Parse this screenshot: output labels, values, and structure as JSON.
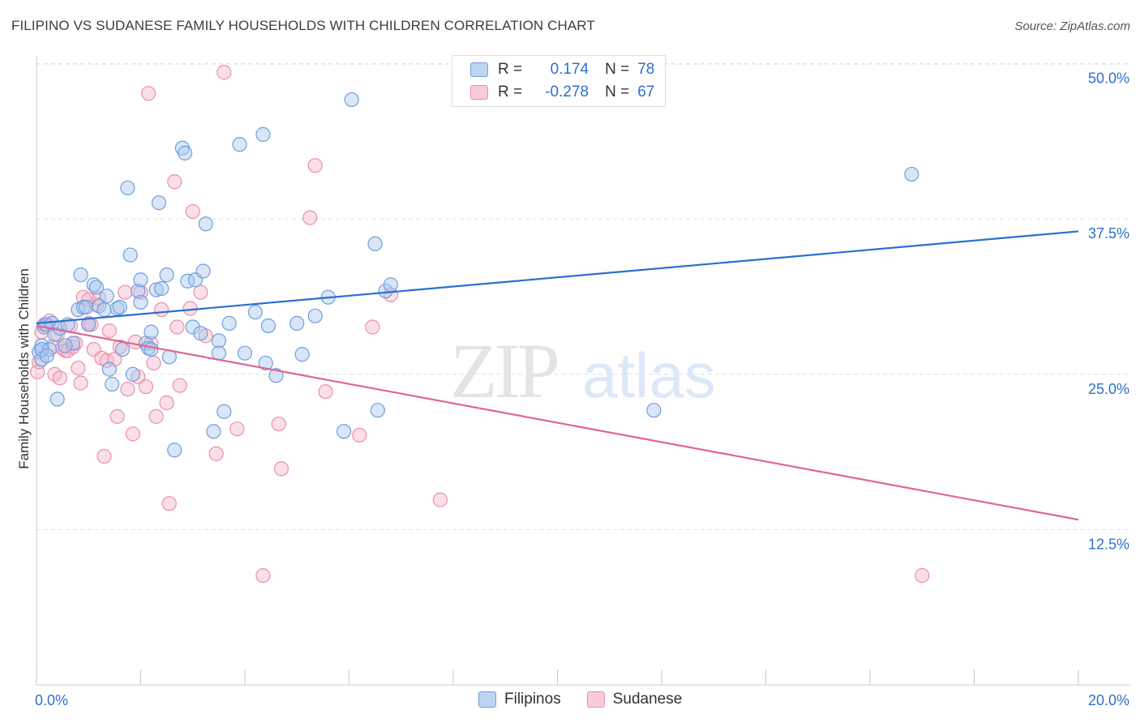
{
  "title": "FILIPINO VS SUDANESE FAMILY HOUSEHOLDS WITH CHILDREN CORRELATION CHART",
  "source": "Source: ZipAtlas.com",
  "watermark": {
    "zip": "ZIP",
    "atlas": "atlas"
  },
  "legend": {
    "r_label": "R =",
    "n_label": "N =",
    "rows": [
      {
        "r": "0.174",
        "n": "78"
      },
      {
        "r": "-0.278",
        "n": "67"
      }
    ]
  },
  "bottom_legend": [
    "Filipinos",
    "Sudanese"
  ],
  "colors": {
    "filipinos_fill": "#a9c8f0",
    "filipinos_stroke": "#6f9fdc",
    "filipinos_line": "#2a6fcf",
    "sudanese_fill": "#f6b8cb",
    "sudanese_stroke": "#eb8eaa",
    "sudanese_line": "#e0668f",
    "tick_label": "#2e6fd1"
  },
  "chart_data": {
    "type": "scatter",
    "title": "FILIPINO VS SUDANESE FAMILY HOUSEHOLDS WITH CHILDREN CORRELATION CHART",
    "xlabel": "",
    "ylabel": "Family Households with Children",
    "xlim": [
      0,
      20
    ],
    "ylim": [
      0,
      52
    ],
    "x_tick_labels": [
      "0.0%",
      "20.0%"
    ],
    "y_ticks": [
      12.5,
      25.0,
      37.5,
      50.0
    ],
    "y_tick_labels": [
      "12.5%",
      "25.0%",
      "37.5%",
      "50.0%"
    ],
    "grid": true,
    "legend_position": "top-center",
    "series": [
      {
        "name": "Filipinos",
        "r": 0.174,
        "n": 78,
        "trend": {
          "x": [
            0,
            20
          ],
          "y": [
            29.1,
            36.5
          ]
        },
        "points": [
          [
            0.05,
            26.8
          ],
          [
            0.1,
            27.3
          ],
          [
            0.1,
            26.2
          ],
          [
            0.15,
            28.8
          ],
          [
            0.18,
            29.0
          ],
          [
            0.25,
            27.0
          ],
          [
            0.3,
            29.1
          ],
          [
            0.35,
            28.2
          ],
          [
            0.4,
            23.0
          ],
          [
            0.45,
            28.7
          ],
          [
            0.6,
            29.0
          ],
          [
            0.7,
            27.5
          ],
          [
            0.8,
            30.2
          ],
          [
            0.85,
            33.0
          ],
          [
            0.9,
            30.4
          ],
          [
            0.95,
            30.4
          ],
          [
            1.0,
            29.0
          ],
          [
            1.1,
            32.2
          ],
          [
            1.15,
            32.0
          ],
          [
            1.2,
            30.5
          ],
          [
            1.3,
            30.2
          ],
          [
            1.35,
            31.3
          ],
          [
            1.4,
            25.4
          ],
          [
            1.45,
            24.2
          ],
          [
            1.55,
            30.3
          ],
          [
            1.6,
            30.4
          ],
          [
            1.65,
            27.0
          ],
          [
            1.75,
            40.0
          ],
          [
            1.8,
            34.6
          ],
          [
            1.85,
            25.0
          ],
          [
            1.95,
            31.7
          ],
          [
            2.0,
            30.8
          ],
          [
            2.0,
            32.6
          ],
          [
            2.1,
            27.5
          ],
          [
            2.15,
            27.1
          ],
          [
            2.2,
            28.4
          ],
          [
            2.3,
            31.8
          ],
          [
            2.35,
            38.8
          ],
          [
            2.4,
            31.9
          ],
          [
            2.5,
            33.0
          ],
          [
            2.55,
            26.4
          ],
          [
            2.65,
            18.9
          ],
          [
            2.8,
            43.2
          ],
          [
            2.85,
            42.8
          ],
          [
            2.9,
            32.5
          ],
          [
            3.0,
            28.8
          ],
          [
            3.05,
            32.6
          ],
          [
            3.15,
            28.3
          ],
          [
            3.2,
            33.3
          ],
          [
            3.25,
            37.1
          ],
          [
            3.4,
            20.4
          ],
          [
            3.5,
            27.7
          ],
          [
            3.5,
            26.7
          ],
          [
            3.6,
            22.0
          ],
          [
            3.7,
            29.1
          ],
          [
            3.9,
            43.5
          ],
          [
            4.0,
            26.7
          ],
          [
            4.2,
            30.0
          ],
          [
            4.35,
            44.3
          ],
          [
            4.4,
            25.9
          ],
          [
            4.45,
            28.9
          ],
          [
            4.6,
            24.9
          ],
          [
            5.0,
            29.1
          ],
          [
            5.1,
            26.6
          ],
          [
            5.35,
            29.7
          ],
          [
            5.6,
            31.2
          ],
          [
            5.9,
            20.4
          ],
          [
            6.05,
            47.1
          ],
          [
            6.5,
            35.5
          ],
          [
            6.55,
            22.1
          ],
          [
            6.7,
            31.7
          ],
          [
            6.8,
            32.2
          ],
          [
            11.85,
            22.1
          ],
          [
            16.8,
            41.1
          ],
          [
            0.1,
            27.0
          ],
          [
            0.2,
            26.5
          ],
          [
            0.55,
            27.3
          ],
          [
            2.2,
            27.0
          ]
        ]
      },
      {
        "name": "Sudanese",
        "r": -0.278,
        "n": 67,
        "trend": {
          "x": [
            0,
            20
          ],
          "y": [
            28.9,
            13.3
          ]
        },
        "points": [
          [
            0.02,
            25.2
          ],
          [
            0.1,
            28.4
          ],
          [
            0.15,
            29.0
          ],
          [
            0.2,
            29.0
          ],
          [
            0.25,
            29.3
          ],
          [
            0.3,
            27.2
          ],
          [
            0.35,
            25.0
          ],
          [
            0.45,
            24.7
          ],
          [
            0.5,
            27.1
          ],
          [
            0.55,
            26.9
          ],
          [
            0.6,
            26.9
          ],
          [
            0.65,
            28.9
          ],
          [
            0.7,
            27.2
          ],
          [
            0.75,
            27.5
          ],
          [
            0.8,
            25.5
          ],
          [
            0.85,
            24.3
          ],
          [
            0.9,
            31.2
          ],
          [
            1.0,
            31.0
          ],
          [
            1.0,
            29.1
          ],
          [
            1.05,
            29.0
          ],
          [
            1.1,
            27.0
          ],
          [
            1.15,
            30.6
          ],
          [
            1.2,
            31.1
          ],
          [
            1.25,
            26.3
          ],
          [
            1.3,
            18.4
          ],
          [
            1.35,
            26.1
          ],
          [
            1.4,
            28.5
          ],
          [
            1.5,
            26.2
          ],
          [
            1.55,
            21.6
          ],
          [
            1.6,
            27.2
          ],
          [
            1.7,
            31.6
          ],
          [
            1.75,
            23.8
          ],
          [
            1.85,
            20.2
          ],
          [
            1.9,
            27.6
          ],
          [
            1.95,
            24.8
          ],
          [
            2.0,
            31.6
          ],
          [
            2.1,
            24.0
          ],
          [
            2.15,
            47.6
          ],
          [
            2.2,
            27.5
          ],
          [
            2.25,
            25.9
          ],
          [
            2.3,
            21.6
          ],
          [
            2.4,
            30.2
          ],
          [
            2.5,
            22.7
          ],
          [
            2.55,
            14.6
          ],
          [
            2.65,
            40.5
          ],
          [
            2.7,
            28.8
          ],
          [
            2.75,
            24.1
          ],
          [
            2.95,
            30.3
          ],
          [
            3.0,
            38.1
          ],
          [
            3.15,
            31.6
          ],
          [
            3.25,
            28.1
          ],
          [
            3.45,
            18.6
          ],
          [
            3.6,
            49.3
          ],
          [
            3.85,
            20.6
          ],
          [
            4.35,
            8.8
          ],
          [
            4.65,
            21.0
          ],
          [
            4.7,
            17.4
          ],
          [
            5.25,
            37.6
          ],
          [
            5.35,
            41.8
          ],
          [
            5.55,
            23.6
          ],
          [
            6.2,
            20.1
          ],
          [
            6.45,
            28.8
          ],
          [
            6.8,
            31.4
          ],
          [
            7.75,
            14.9
          ],
          [
            17.0,
            8.8
          ],
          [
            0.05,
            26.0
          ],
          [
            0.4,
            28.2
          ]
        ]
      }
    ]
  }
}
